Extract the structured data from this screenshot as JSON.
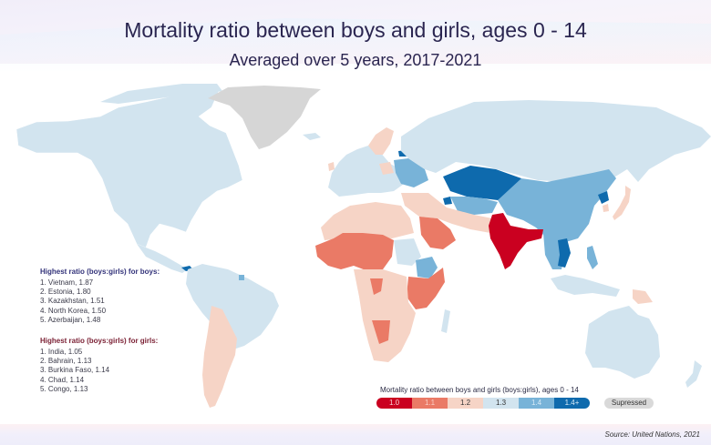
{
  "header": {
    "title": "Mortality ratio between boys and girls, ages 0 - 14",
    "subtitle": "Averaged over 5 years, 2017-2021"
  },
  "panels": {
    "boys": {
      "heading": "Highest ratio (boys:girls) for boys:",
      "items": [
        "1. Vietnam, 1.87",
        "2. Estonia, 1.80",
        "3. Kazakhstan, 1.51",
        "4. North Korea, 1.50",
        "5. Azerbaijan, 1.48"
      ]
    },
    "girls": {
      "heading": "Highest ratio (boys:girls) for girls:",
      "items": [
        "1. India, 1.05",
        "2. Bahrain, 1.13",
        "3. Burkina Faso, 1.14",
        "4. Chad, 1.14",
        "5. Congo, 1.13"
      ]
    }
  },
  "legend": {
    "title": "Mortality ratio between boys and girls (boys:girls), ages 0 - 14",
    "bins": [
      {
        "label": "1.0",
        "color": "#ca0020",
        "text_color": "#f7d0d4"
      },
      {
        "label": "1.1",
        "color": "#ea7a66",
        "text_color": "#f9cfc6"
      },
      {
        "label": "1.2",
        "color": "#f6d4c6",
        "text_color": "#333333"
      },
      {
        "label": "1.3",
        "color": "#d2e4ef",
        "text_color": "#333333"
      },
      {
        "label": "1.4",
        "color": "#78b3d8",
        "text_color": "#d8ebf7"
      },
      {
        "label": "1.4+",
        "color": "#0e6aad",
        "text_color": "#d8ebf7"
      }
    ],
    "suppressed_label": "Supressed",
    "suppressed_color": "#d9d9d9"
  },
  "source": "Source: United Nations, 2021",
  "chart_data": {
    "type": "choropleth",
    "title": "Mortality ratio between boys and girls, ages 0 - 14",
    "subtitle": "Averaged over 5 years, 2017-2021",
    "value_label": "boys:girls mortality ratio",
    "regions": [
      {
        "name": "North America",
        "bin": "1.3"
      },
      {
        "name": "Greenland",
        "bin": "suppressed"
      },
      {
        "name": "South America",
        "bin": "1.3"
      },
      {
        "name": "Argentina/Chile/Bolivia",
        "bin": "1.2"
      },
      {
        "name": "Panama",
        "bin": "1.4+"
      },
      {
        "name": "French Guiana",
        "bin": "1.4"
      },
      {
        "name": "Europe",
        "bin": "1.3"
      },
      {
        "name": "Scandinavia",
        "bin": "1.2"
      },
      {
        "name": "Estonia",
        "bin": "1.4+"
      },
      {
        "name": "Ukraine/Belarus",
        "bin": "1.4"
      },
      {
        "name": "Russia",
        "bin": "1.3"
      },
      {
        "name": "Kazakhstan",
        "bin": "1.4+"
      },
      {
        "name": "Azerbaijan",
        "bin": "1.4+"
      },
      {
        "name": "Central Asia",
        "bin": "1.4"
      },
      {
        "name": "China/Mongolia",
        "bin": "1.4"
      },
      {
        "name": "North Korea",
        "bin": "1.4+"
      },
      {
        "name": "Japan",
        "bin": "1.2"
      },
      {
        "name": "India",
        "bin": "1.0"
      },
      {
        "name": "Middle East",
        "bin": "1.2"
      },
      {
        "name": "Saudi Arabia",
        "bin": "1.1"
      },
      {
        "name": "North Africa",
        "bin": "1.2"
      },
      {
        "name": "Sahel / West Africa",
        "bin": "1.1"
      },
      {
        "name": "Sudan",
        "bin": "1.3"
      },
      {
        "name": "Ethiopia",
        "bin": "1.4"
      },
      {
        "name": "East Africa",
        "bin": "1.1"
      },
      {
        "name": "Central/Southern Africa",
        "bin": "1.2"
      },
      {
        "name": "Namibia",
        "bin": "1.1"
      },
      {
        "name": "Madagascar",
        "bin": "1.3"
      },
      {
        "name": "Southeast Asia",
        "bin": "1.4"
      },
      {
        "name": "Vietnam/Cambodia",
        "bin": "1.4+"
      },
      {
        "name": "Indonesia",
        "bin": "1.3"
      },
      {
        "name": "Papua New Guinea",
        "bin": "1.2"
      },
      {
        "name": "Australia",
        "bin": "1.3"
      },
      {
        "name": "New Zealand",
        "bin": "1.3"
      }
    ],
    "top_boys": [
      {
        "country": "Vietnam",
        "value": 1.87
      },
      {
        "country": "Estonia",
        "value": 1.8
      },
      {
        "country": "Kazakhstan",
        "value": 1.51
      },
      {
        "country": "North Korea",
        "value": 1.5
      },
      {
        "country": "Azerbaijan",
        "value": 1.48
      }
    ],
    "top_girls": [
      {
        "country": "India",
        "value": 1.05
      },
      {
        "country": "Bahrain",
        "value": 1.13
      },
      {
        "country": "Burkina Faso",
        "value": 1.14
      },
      {
        "country": "Chad",
        "value": 1.14
      },
      {
        "country": "Congo",
        "value": 1.13
      }
    ]
  }
}
